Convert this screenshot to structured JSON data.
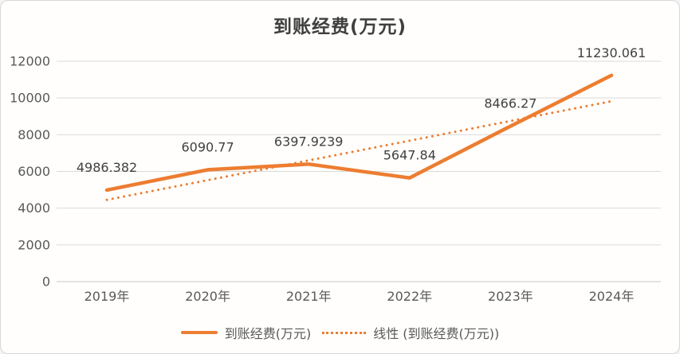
{
  "chart_data": {
    "type": "line",
    "title": "到账经费(万元)",
    "categories": [
      "2019年",
      "2020年",
      "2021年",
      "2022年",
      "2023年",
      "2024年"
    ],
    "series": [
      {
        "name": "到账经费(万元)",
        "style": "solid",
        "color": "#ED7D31",
        "values": [
          4986.382,
          6090.77,
          6397.9239,
          5647.84,
          8466.27,
          11230.061
        ],
        "data_labels": [
          "4986.382",
          "6090.77",
          "6397.9239",
          "5647.84",
          "8466.27",
          "11230.061"
        ]
      },
      {
        "name": "线性 (到账经费(万元))",
        "style": "dotted",
        "color": "#ED7D31",
        "trendline": true,
        "values": [
          4451.2,
          5525.4,
          6599.5,
          7673.6,
          8747.8,
          9821.9
        ]
      }
    ],
    "yticks": [
      0,
      2000,
      4000,
      6000,
      8000,
      10000,
      12000
    ],
    "ylim": [
      0,
      12000
    ],
    "grid": true,
    "legend_position": "bottom",
    "colors": {
      "accent": "#ED7D31",
      "gridline": "#D9D9D9",
      "axis_line": "#C8C8C8",
      "axis_text": "#595959",
      "label_text": "#404040",
      "title_text": "#3F3F3F",
      "card_border": "#D6D6D6",
      "background": "#FFFEFC"
    }
  }
}
